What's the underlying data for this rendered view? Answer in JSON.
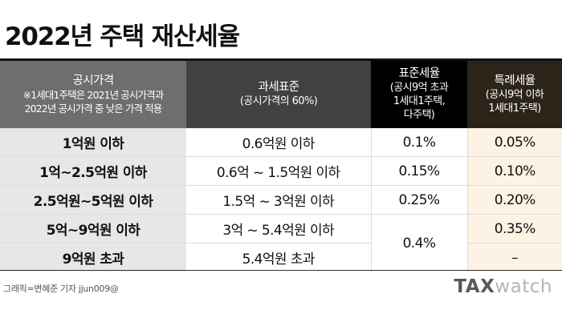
{
  "title": "2022년 주택 재산세율",
  "header": {
    "col1": {
      "main": "공시가격",
      "note1": "※1세대1주택은 2021년 공시가격과",
      "note2": "2022년 공시가격 중 낮은 가격 적용"
    },
    "col2": {
      "main": "과세표준",
      "sub": "(공시가격의 60%)"
    },
    "col3": {
      "main": "표준세율",
      "sub1": "(공시9억 초과",
      "sub2": "1세대1주택,",
      "sub3": "다주택)"
    },
    "col4": {
      "main": "특례세율",
      "sub1": "(공시9억 이하",
      "sub2": "1세대1주택)"
    }
  },
  "rows": [
    {
      "price": "1억원 이하",
      "base": "0.6억원 이하",
      "standard": "0.1%",
      "special": "0.05%"
    },
    {
      "price": "1억~2.5억원 이하",
      "base": "0.6억 ~ 1.5억원 이하",
      "standard": "0.15%",
      "special": "0.10%"
    },
    {
      "price": "2.5억원~5억원 이하",
      "base": "1.5억 ~ 3억원 이하",
      "standard": "0.25%",
      "special": "0.20%"
    },
    {
      "price": "5억~9억원 이하",
      "base": "3억 ~ 5.4억원 이하",
      "standard": "0.4%",
      "special": "0.35%"
    },
    {
      "price": "9억원 초과",
      "base": "5.4억원 초과",
      "special": "–"
    }
  ],
  "credit": "그래픽=변혜준 기자 jjun009@",
  "logo": {
    "part1": "TAX",
    "part2": "watch"
  }
}
